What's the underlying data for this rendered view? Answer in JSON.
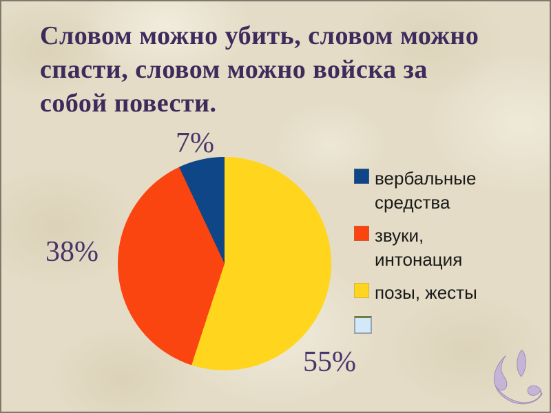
{
  "slide": {
    "title_lines": [
      "Словом можно убить, словом можно",
      "спасти, словом можно войска за",
      "собой повести."
    ]
  },
  "chart_data": {
    "type": "pie",
    "unit": "percent",
    "legend_position": "right",
    "slices": [
      {
        "label": "вербальные средства",
        "value": 7,
        "pct_label": "7%",
        "color": "#0E4688"
      },
      {
        "label": "звуки, интонация",
        "value": 38,
        "pct_label": "38%",
        "color": "#FB4511"
      },
      {
        "label": "позы, жесты",
        "value": 55,
        "pct_label": "55%",
        "color": "#FFD51E"
      },
      {
        "label": "",
        "value": null,
        "pct_label": "",
        "color": "#D3E8F8",
        "swatch_border": "#9AA3AC",
        "swatch_top_edge": "#6E8040"
      }
    ],
    "draw_order_clockwise_from_top": [
      "позы, жесты",
      "звуки, интонация",
      "вербальные средства"
    ]
  },
  "colors": {
    "background": "#E4DCC6",
    "title_text": "#3F2A5C",
    "pct_label_text": "#4A336B",
    "legend_text": "#1A1A1A",
    "slide_border": "#7E796B",
    "ornament_fill": "#C6B4D6",
    "ornament_edge": "#9E8BB5"
  }
}
